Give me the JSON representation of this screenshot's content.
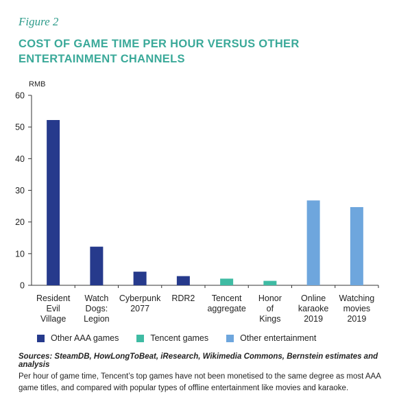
{
  "figure_label": "Figure 2",
  "title": "COST OF GAME TIME PER HOUR VERSUS OTHER ENTERTAINMENT CHANNELS",
  "chart_data": {
    "type": "bar",
    "ylabel": "RMB",
    "ylim": [
      0,
      60
    ],
    "yticks": [
      0,
      10,
      20,
      30,
      40,
      50,
      60
    ],
    "grid": false,
    "legend_position": "bottom",
    "categories": [
      [
        "Resident",
        "Evil",
        "Village"
      ],
      [
        "Watch",
        "Dogs:",
        "Legion"
      ],
      [
        "Cyberpunk",
        "2077"
      ],
      [
        "RDR2"
      ],
      [
        "Tencent",
        "aggregate"
      ],
      [
        "Honor",
        "of",
        "Kings"
      ],
      [
        "Online",
        "karaoke",
        "2019"
      ],
      [
        "Watching",
        "movies",
        "2019"
      ]
    ],
    "values": [
      52.2,
      12.2,
      4.3,
      2.9,
      2.1,
      1.4,
      26.8,
      24.7
    ],
    "groups": [
      0,
      0,
      0,
      0,
      1,
      1,
      2,
      2
    ],
    "legend": [
      {
        "label": "Other AAA games",
        "color": "#263a8c"
      },
      {
        "label": "Tencent games",
        "color": "#3fbba3"
      },
      {
        "label": "Other entertainment",
        "color": "#6ea6dd"
      }
    ]
  },
  "sources": "Sources: SteamDB, HowLongToBeat, iResearch, Wikimedia Commons, Bernstein estimates and analysis",
  "note": "Per hour of game time, Tencent’s top games have not been monetised to the same degree as most AAA game titles, and compared with popular types of offline entertainment like movies and karaoke."
}
